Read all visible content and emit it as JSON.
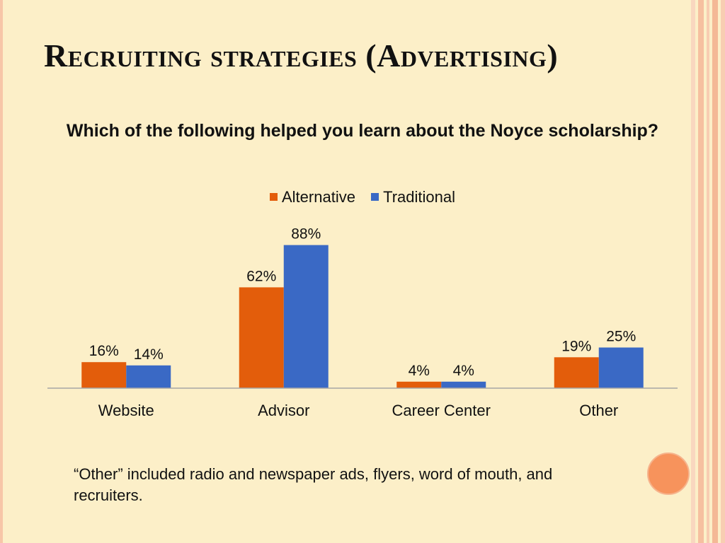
{
  "slide": {
    "title": "Recruiting strategies (Advertising)",
    "note": "“Other” included radio and newspaper ads, flyers, word of mouth, and recruiters."
  },
  "colors": {
    "background": "#fcefc8",
    "alternative": "#e35d0b",
    "traditional": "#3a69c5",
    "accent_circle": "#f7935c"
  },
  "chart_data": {
    "type": "bar",
    "title": "Which of the following helped you learn about the Noyce scholarship?",
    "categories": [
      "Website",
      "Advisor",
      "Career Center",
      "Other"
    ],
    "series": [
      {
        "name": "Alternative",
        "values": [
          16,
          62,
          4,
          19
        ],
        "labels": [
          "16%",
          "62%",
          "4%",
          "19%"
        ]
      },
      {
        "name": "Traditional",
        "values": [
          14,
          88,
          4,
          25
        ],
        "labels": [
          "14%",
          "88%",
          "4%",
          "25%"
        ]
      }
    ],
    "xlabel": "",
    "ylabel": "",
    "ylim": [
      0,
      100
    ],
    "grid": false,
    "legend": "top"
  }
}
